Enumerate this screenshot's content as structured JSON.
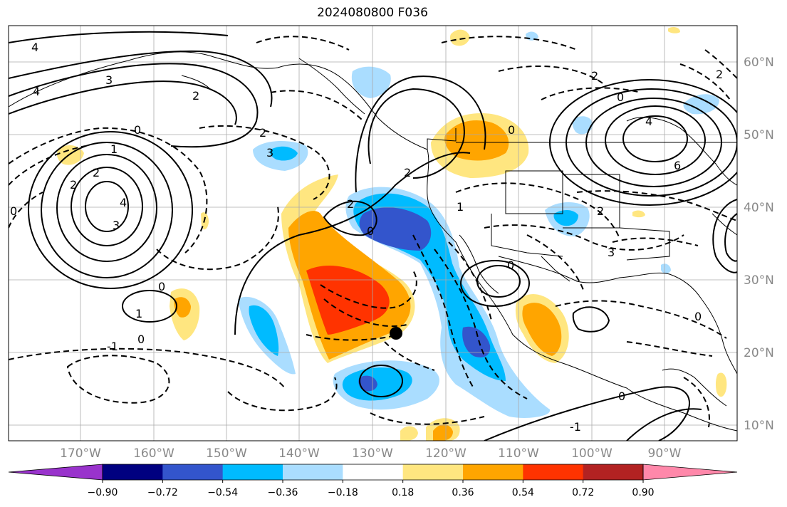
{
  "title": "2024080800 F036",
  "map": {
    "lat_labels": [
      "60°N",
      "50°N",
      "40°N",
      "30°N",
      "20°N",
      "10°N"
    ],
    "lon_labels": [
      "170°W",
      "160°W",
      "150°W",
      "140°W",
      "130°W",
      "120°W",
      "110°W",
      "100°W",
      "90°W"
    ],
    "contour_labels": [
      "4",
      "3",
      "4",
      "2",
      "0",
      "1",
      "2",
      "4",
      "3",
      "2",
      "0",
      "1",
      "0",
      "-1",
      "3",
      "2",
      "0",
      "2",
      "2",
      "0",
      "2",
      "4",
      "6",
      "0",
      "2",
      "3",
      "1",
      "0",
      "0",
      "-1",
      "0",
      "0",
      "2"
    ]
  },
  "colorbar": {
    "ticks": [
      "−0.90",
      "−0.72",
      "−0.54",
      "−0.36",
      "−0.18",
      "0.18",
      "0.36",
      "0.54",
      "0.72",
      "0.90"
    ],
    "colors": [
      "#9933cc",
      "#000080",
      "#3355cc",
      "#00bbff",
      "#aaddff",
      "#ffffff",
      "#ffe680",
      "#ffa500",
      "#ff3300",
      "#b22222",
      "#ff88aa"
    ]
  }
}
